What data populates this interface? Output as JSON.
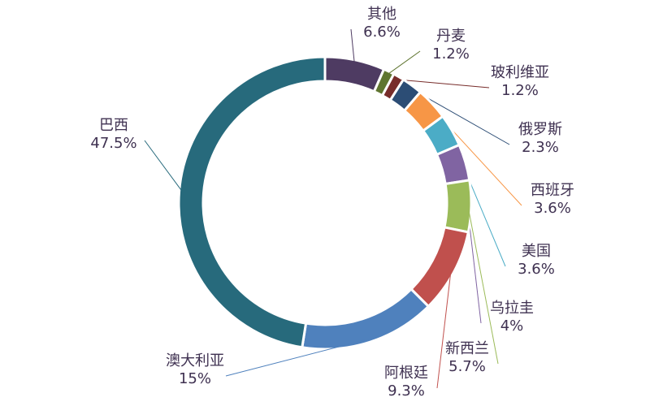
{
  "chart_data": {
    "type": "donut",
    "categories": [
      "其他",
      "丹麦",
      "玻利维亚",
      "俄罗斯",
      "西班牙",
      "美国",
      "乌拉圭",
      "新西兰",
      "阿根廷",
      "澳大利亚",
      "巴西"
    ],
    "values": [
      6.6,
      1.2,
      1.2,
      2.3,
      3.6,
      3.6,
      4,
      5.7,
      9.3,
      15,
      47.5
    ],
    "value_labels": [
      "6.6%",
      "1.2%",
      "1.2%",
      "2.3%",
      "3.6%",
      "3.6%",
      "4%",
      "5.7%",
      "9.3%",
      "15%",
      "47.5%"
    ],
    "colors": [
      "#4e3b62",
      "#5f7530",
      "#772c2a",
      "#2c4d75",
      "#f79646",
      "#4bacc6",
      "#8064a2",
      "#9bbb59",
      "#c0504d",
      "#4f81bd",
      "#276a7c"
    ]
  }
}
